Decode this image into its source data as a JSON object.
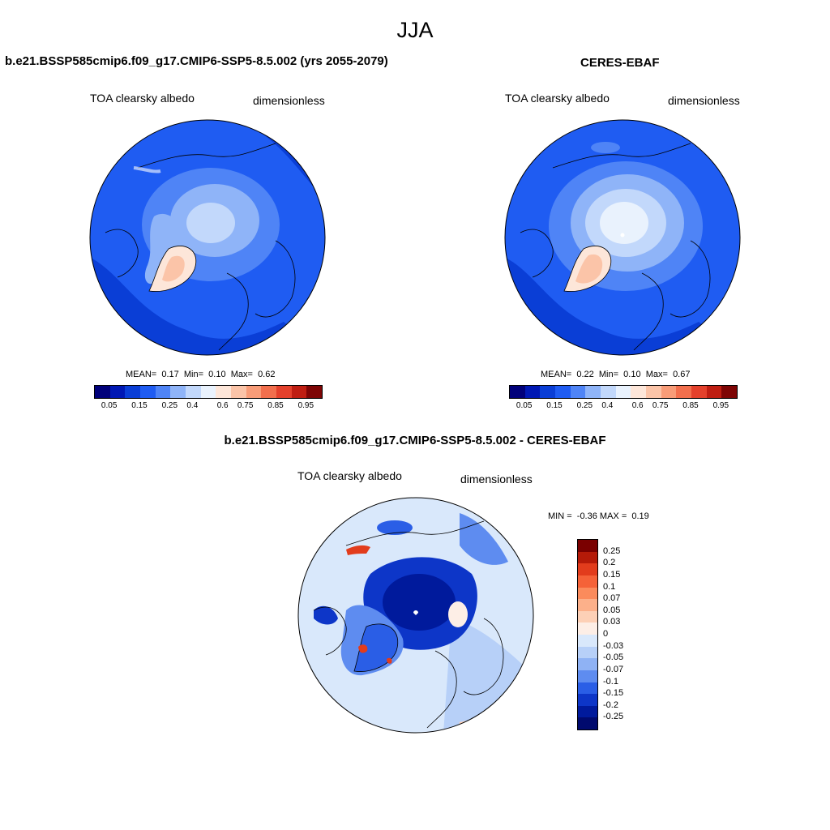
{
  "season": "JJA",
  "colors": {
    "abs_scale": [
      "#00007a",
      "#0018b4",
      "#0a3ed6",
      "#1f5cf2",
      "#4f84f6",
      "#8fb4f8",
      "#c2d8fb",
      "#e9f2fd",
      "#fde6d9",
      "#fbc4a8",
      "#f89c78",
      "#f26f4d",
      "#e4412c",
      "#bf1e12",
      "#7e0505"
    ],
    "diff_scale": [
      "#7a0000",
      "#b51a08",
      "#e23c1c",
      "#f56238",
      "#fb8b5c",
      "#fcb08a",
      "#fdd0b6",
      "#fdeee6",
      "#d9e8fb",
      "#b7d0f8",
      "#8fb2f4",
      "#5e8cf0",
      "#2a5ee6",
      "#0d36c8",
      "#001a9c",
      "#000a6e"
    ],
    "land_outline": "#000000"
  },
  "panels": {
    "model": {
      "title": "b.e21.BSSP585cmip6.f09_g17.CMIP6-SSP5-8.5.002 (yrs 2055-2079)",
      "variable": "TOA clearsky albedo",
      "units": "dimensionless",
      "stats": {
        "mean_label": "MEAN=",
        "mean": "0.17",
        "min_label": "Min=",
        "min": "0.10",
        "max_label": "Max=",
        "max": "0.62"
      },
      "colorbar_ticks": [
        "0.05",
        "0.15",
        "0.25",
        "0.4",
        "0.6",
        "0.75",
        "0.85",
        "0.95"
      ]
    },
    "obs": {
      "title": "CERES-EBAF",
      "variable": "TOA clearsky albedo",
      "units": "dimensionless",
      "stats": {
        "mean_label": "MEAN=",
        "mean": "0.22",
        "min_label": "Min=",
        "min": "0.10",
        "max_label": "Max=",
        "max": "0.67"
      },
      "colorbar_ticks": [
        "0.05",
        "0.15",
        "0.25",
        "0.4",
        "0.6",
        "0.75",
        "0.85",
        "0.95"
      ]
    },
    "diff": {
      "title": "b.e21.BSSP585cmip6.f09_g17.CMIP6-SSP5-8.5.002 - CERES-EBAF",
      "variable": "TOA clearsky albedo",
      "units": "dimensionless",
      "stats": {
        "min_label": "MIN =",
        "min": "-0.36",
        "max_label": "MAX =",
        "max": "0.19"
      },
      "colorbar_ticks": [
        "0.25",
        "0.2",
        "0.15",
        "0.1",
        "0.07",
        "0.05",
        "0.03",
        "0",
        "-0.03",
        "-0.05",
        "-0.07",
        "-0.1",
        "-0.15",
        "-0.2",
        "-0.25"
      ]
    }
  }
}
